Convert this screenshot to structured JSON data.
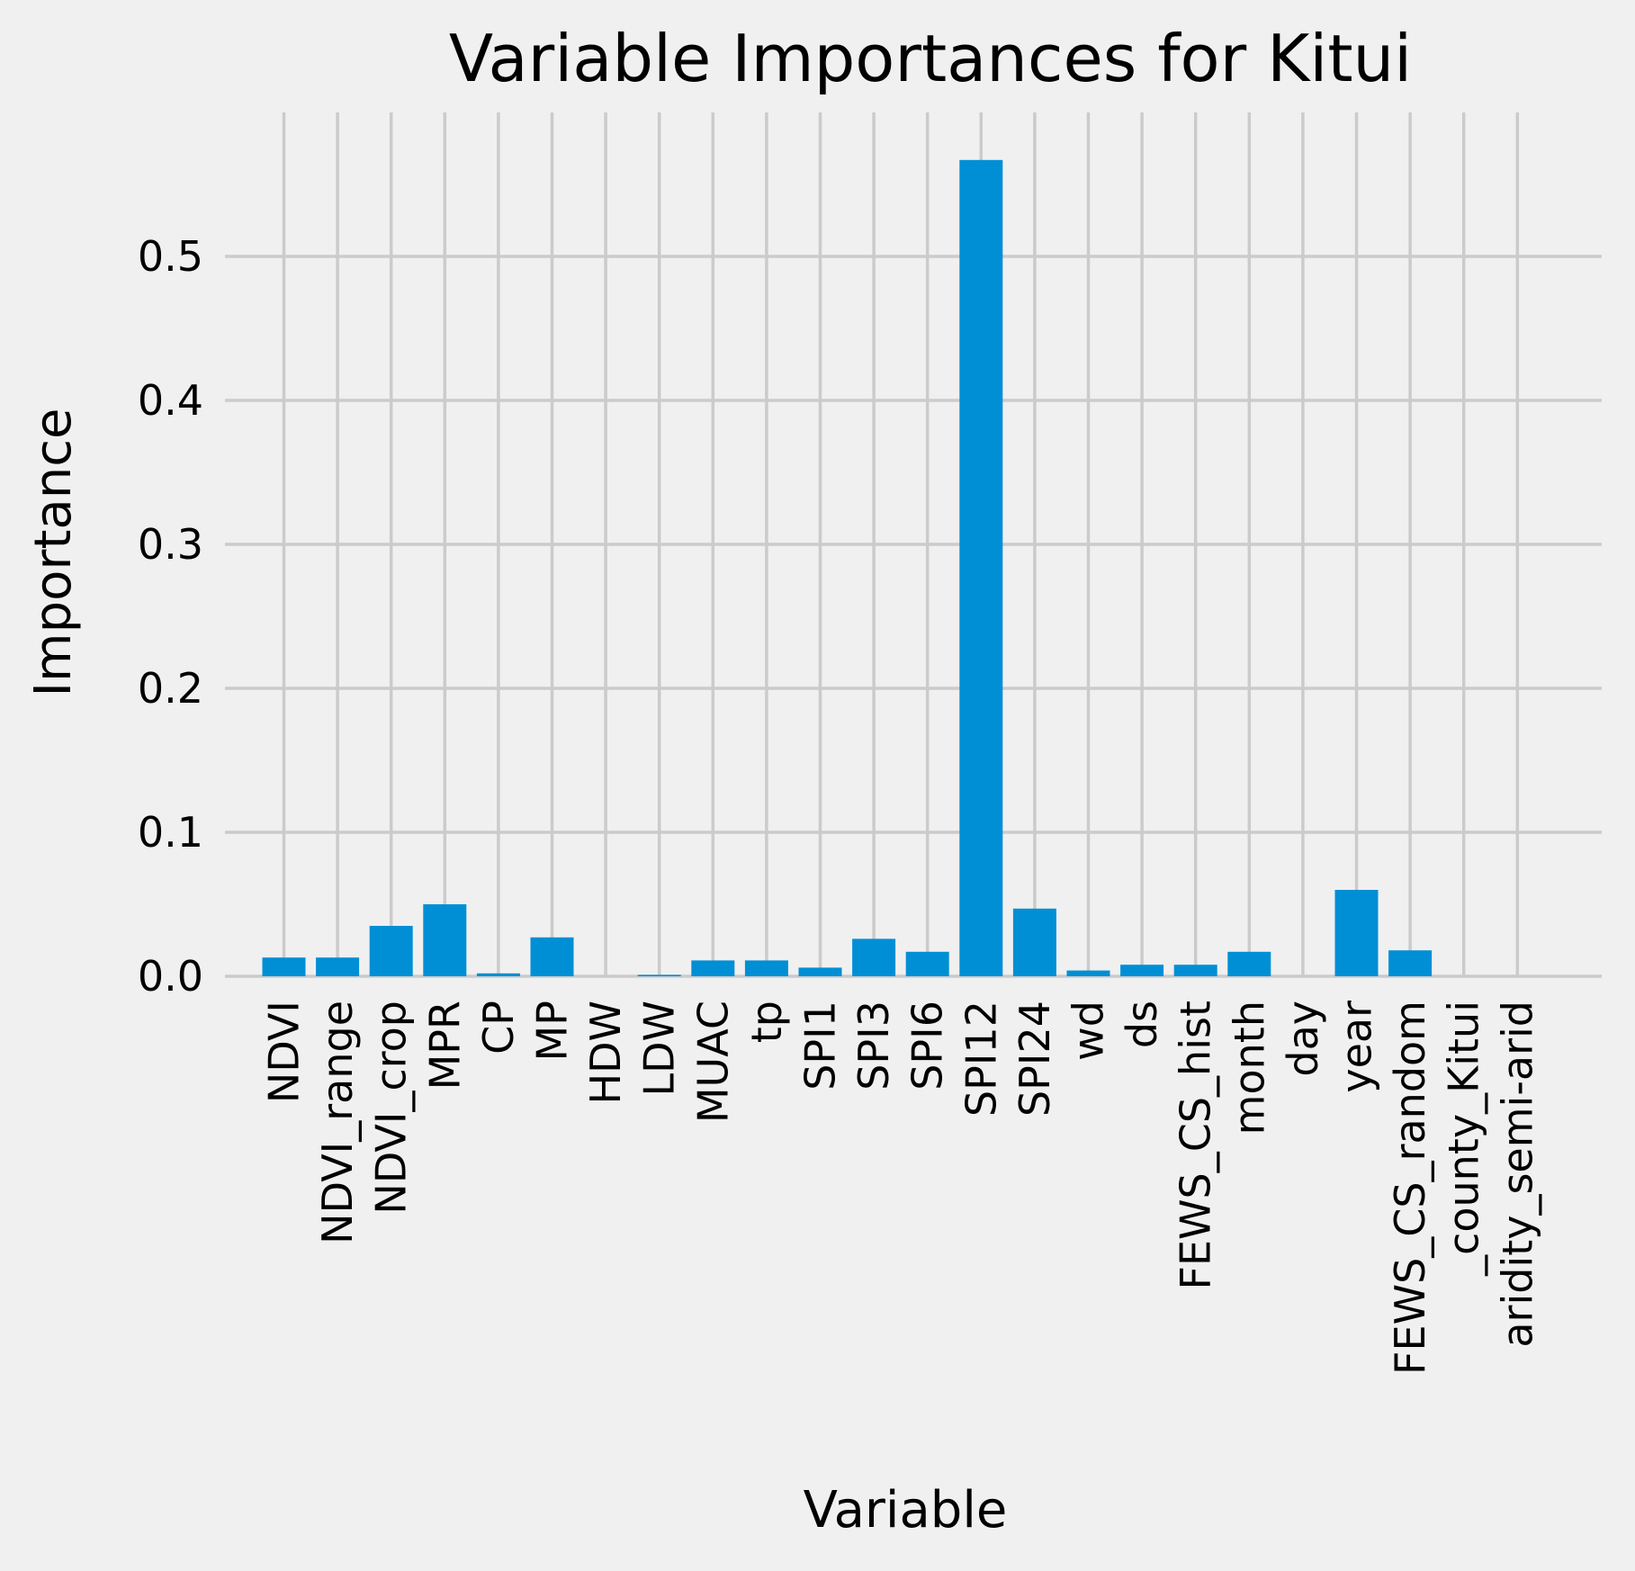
{
  "chart_data": {
    "type": "bar",
    "title": "Variable Importances for Kitui",
    "xlabel": "Variable",
    "ylabel": "Importance",
    "ylim": [
      0,
      0.6
    ],
    "yticks": [
      0.0,
      0.1,
      0.2,
      0.3,
      0.4,
      0.5
    ],
    "ytick_labels": [
      "0.0",
      "0.1",
      "0.2",
      "0.3",
      "0.4",
      "0.5"
    ],
    "grid": true,
    "bar_color": "#008fd5",
    "background_color": "#f0f0f0",
    "grid_color": "#cbcbcb",
    "categories": [
      "NDVI",
      "NDVI_range",
      "NDVI_crop",
      "MPR",
      "CP",
      "MP",
      "HDW",
      "LDW",
      "MUAC",
      "tp",
      "SPI1",
      "SPI3",
      "SPI6",
      "SPI12",
      "SPI24",
      "wd",
      "ds",
      "FEWS_CS_hist",
      "month",
      "day",
      "year",
      "FEWS_CS_random",
      "_county_Kitui",
      "aridity_semi-arid"
    ],
    "values": [
      0.013,
      0.013,
      0.035,
      0.05,
      0.002,
      0.027,
      0.0,
      0.001,
      0.011,
      0.011,
      0.006,
      0.026,
      0.017,
      0.567,
      0.047,
      0.004,
      0.008,
      0.008,
      0.017,
      0.0,
      0.06,
      0.018,
      0.0,
      0.0
    ]
  }
}
